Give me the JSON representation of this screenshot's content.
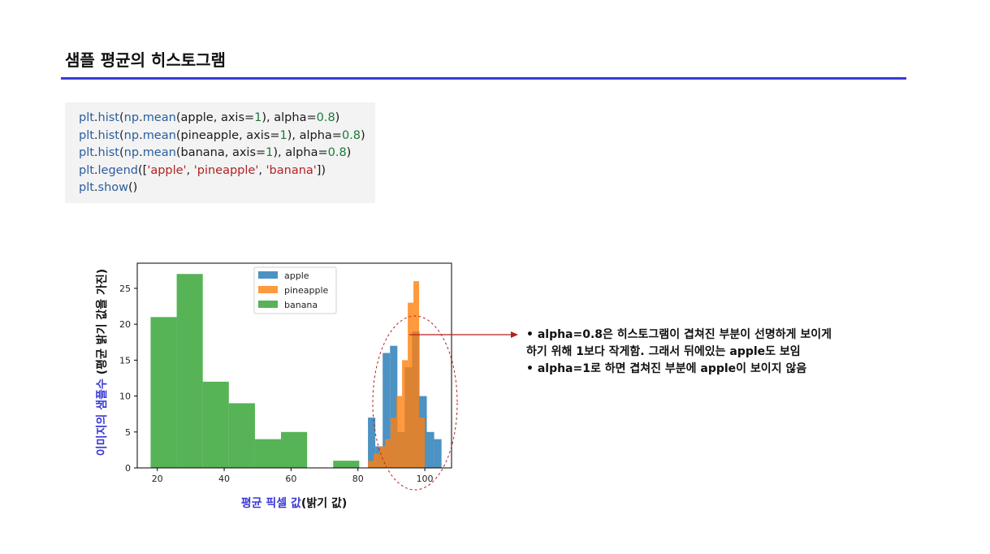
{
  "slide": {
    "title": "샘플 평균의 히스토그램"
  },
  "code": {
    "lines": [
      [
        {
          "t": "plt",
          "c": "#2a5d9f"
        },
        {
          "t": ".",
          "c": "#222222"
        },
        {
          "t": "hist",
          "c": "#2a5d9f"
        },
        {
          "t": "(",
          "c": "#222222"
        },
        {
          "t": "np",
          "c": "#2a5d9f"
        },
        {
          "t": ".",
          "c": "#222222"
        },
        {
          "t": "mean",
          "c": "#2a5d9f"
        },
        {
          "t": "(",
          "c": "#222222"
        },
        {
          "t": "apple, axis=",
          "c": "#1a1a1a"
        },
        {
          "t": "1",
          "c": "#1a7a3a"
        },
        {
          "t": "), alpha=",
          "c": "#1a1a1a"
        },
        {
          "t": "0.8",
          "c": "#1a7a3a"
        },
        {
          "t": ")",
          "c": "#1a1a1a"
        }
      ],
      [
        {
          "t": "plt",
          "c": "#2a5d9f"
        },
        {
          "t": ".",
          "c": "#222222"
        },
        {
          "t": "hist",
          "c": "#2a5d9f"
        },
        {
          "t": "(",
          "c": "#222222"
        },
        {
          "t": "np",
          "c": "#2a5d9f"
        },
        {
          "t": ".",
          "c": "#222222"
        },
        {
          "t": "mean",
          "c": "#2a5d9f"
        },
        {
          "t": "(",
          "c": "#222222"
        },
        {
          "t": "pineapple, axis=",
          "c": "#1a1a1a"
        },
        {
          "t": "1",
          "c": "#1a7a3a"
        },
        {
          "t": "), alpha=",
          "c": "#1a1a1a"
        },
        {
          "t": "0.8",
          "c": "#1a7a3a"
        },
        {
          "t": ")",
          "c": "#1a1a1a"
        }
      ],
      [
        {
          "t": "plt",
          "c": "#2a5d9f"
        },
        {
          "t": ".",
          "c": "#222222"
        },
        {
          "t": "hist",
          "c": "#2a5d9f"
        },
        {
          "t": "(",
          "c": "#222222"
        },
        {
          "t": "np",
          "c": "#2a5d9f"
        },
        {
          "t": ".",
          "c": "#222222"
        },
        {
          "t": "mean",
          "c": "#2a5d9f"
        },
        {
          "t": "(",
          "c": "#222222"
        },
        {
          "t": "banana, axis=",
          "c": "#1a1a1a"
        },
        {
          "t": "1",
          "c": "#1a7a3a"
        },
        {
          "t": "), alpha=",
          "c": "#1a1a1a"
        },
        {
          "t": "0.8",
          "c": "#1a7a3a"
        },
        {
          "t": ")",
          "c": "#1a1a1a"
        }
      ],
      [
        {
          "t": "plt",
          "c": "#2a5d9f"
        },
        {
          "t": ".",
          "c": "#222222"
        },
        {
          "t": "legend",
          "c": "#2a5d9f"
        },
        {
          "t": "([",
          "c": "#1a1a1a"
        },
        {
          "t": "'apple'",
          "c": "#b22222"
        },
        {
          "t": ", ",
          "c": "#1a1a1a"
        },
        {
          "t": "'pineapple'",
          "c": "#b22222"
        },
        {
          "t": ", ",
          "c": "#1a1a1a"
        },
        {
          "t": "'banana'",
          "c": "#b22222"
        },
        {
          "t": "])",
          "c": "#1a1a1a"
        }
      ],
      [
        {
          "t": "plt",
          "c": "#2a5d9f"
        },
        {
          "t": ".",
          "c": "#222222"
        },
        {
          "t": "show",
          "c": "#2a5d9f"
        },
        {
          "t": "()",
          "c": "#1a1a1a"
        }
      ]
    ]
  },
  "chart_data": {
    "type": "bar",
    "xlabel_blue": "평균 픽셀 값",
    "xlabel_black": "(밝기 값)",
    "ylabel_blue": "이미지의 샘플수",
    "ylabel_black": " (평균 밝기 값을 가진)",
    "xlim": [
      14,
      108
    ],
    "ylim": [
      0,
      28.5
    ],
    "xticks": [
      20,
      40,
      60,
      80,
      100
    ],
    "yticks": [
      0,
      5,
      10,
      15,
      20,
      25
    ],
    "legend_position": "top-center",
    "grid": false,
    "series": [
      {
        "name": "banana",
        "color": "#2ca02c",
        "alpha": 0.8,
        "bins": [
          [
            18.0,
            25.8,
            21
          ],
          [
            25.8,
            33.6,
            27
          ],
          [
            33.6,
            41.4,
            12
          ],
          [
            41.4,
            49.2,
            9
          ],
          [
            49.2,
            57.0,
            4
          ],
          [
            57.0,
            64.8,
            5
          ],
          [
            64.8,
            72.6,
            0
          ],
          [
            72.6,
            80.4,
            1
          ]
        ]
      },
      {
        "name": "apple",
        "color": "#1f77b4",
        "alpha": 0.8,
        "bins": [
          [
            83.0,
            85.2,
            7
          ],
          [
            85.2,
            87.4,
            3
          ],
          [
            87.4,
            89.6,
            16
          ],
          [
            89.6,
            91.8,
            17
          ],
          [
            91.8,
            94.0,
            5
          ],
          [
            94.0,
            96.2,
            14
          ],
          [
            96.2,
            98.4,
            19
          ],
          [
            98.4,
            100.6,
            10
          ],
          [
            100.6,
            102.8,
            5
          ],
          [
            102.8,
            105.0,
            4
          ]
        ]
      },
      {
        "name": "pineapple",
        "color": "#ff7f0e",
        "alpha": 0.8,
        "bins": [
          [
            83.0,
            84.7,
            1
          ],
          [
            84.7,
            86.4,
            2
          ],
          [
            86.4,
            88.1,
            3
          ],
          [
            88.1,
            89.8,
            4
          ],
          [
            89.8,
            91.5,
            7
          ],
          [
            91.5,
            93.2,
            10
          ],
          [
            93.2,
            94.9,
            15
          ],
          [
            94.9,
            96.6,
            23
          ],
          [
            96.6,
            98.3,
            26
          ],
          [
            98.3,
            100.0,
            7
          ]
        ]
      }
    ],
    "legend_order": [
      "apple",
      "pineapple",
      "banana"
    ]
  },
  "annotation": {
    "arrow_color": "#b22222",
    "notes": [
      "• alpha=0.8은 히스토그램이 겹쳐진 부분이 선명하게 보이게",
      "하기 위해 1보다 작게함. 그래서 뒤에있는 apple도 보임",
      "• alpha=1로 하면 겹쳐진 부분에 apple이 보이지 않음"
    ]
  }
}
